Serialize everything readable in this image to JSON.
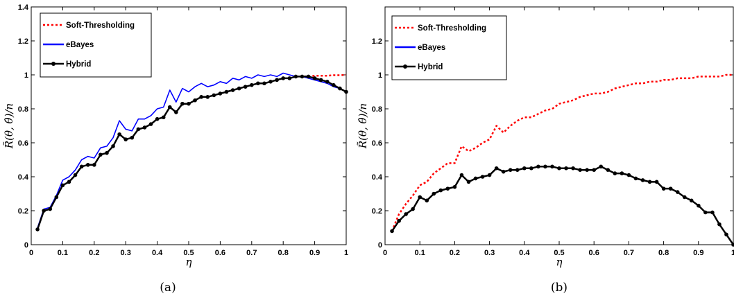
{
  "chart_data": [
    {
      "type": "line",
      "caption": "(a)",
      "xlabel": "η",
      "ylabel": "R̃(θ, θ̂)/n",
      "xlim": [
        0,
        1
      ],
      "ylim": [
        0,
        1.4
      ],
      "xticks": [
        "0",
        "0.1",
        "0.2",
        "0.3",
        "0.4",
        "0.5",
        "0.6",
        "0.7",
        "0.8",
        "0.9",
        "1"
      ],
      "yticks": [
        "0",
        "0.2",
        "0.4",
        "0.6",
        "0.8",
        "1",
        "1.2",
        "1.4"
      ],
      "legend_position": "top-left",
      "grid": false,
      "series": [
        {
          "name": "Soft-Thresholding",
          "color": "#ff0000",
          "style": "dotted",
          "x": [
            0.84,
            0.86,
            0.88,
            0.9,
            0.92,
            0.94,
            0.96,
            0.98,
            1.0
          ],
          "y": [
            0.99,
            0.99,
            0.99,
            0.995,
            0.995,
            0.995,
            0.998,
            0.998,
            1.0
          ]
        },
        {
          "name": "eBayes",
          "color": "#0000ff",
          "style": "solid",
          "x": [
            0.02,
            0.04,
            0.06,
            0.08,
            0.1,
            0.12,
            0.14,
            0.16,
            0.18,
            0.2,
            0.22,
            0.24,
            0.26,
            0.28,
            0.3,
            0.32,
            0.34,
            0.36,
            0.38,
            0.4,
            0.42,
            0.44,
            0.46,
            0.48,
            0.5,
            0.52,
            0.54,
            0.56,
            0.58,
            0.6,
            0.62,
            0.64,
            0.66,
            0.68,
            0.7,
            0.72,
            0.74,
            0.76,
            0.78,
            0.8,
            0.82,
            0.84,
            0.86,
            0.88,
            0.9,
            0.92,
            0.94,
            0.96,
            0.98,
            1.0
          ],
          "y": [
            0.1,
            0.21,
            0.22,
            0.29,
            0.38,
            0.4,
            0.44,
            0.5,
            0.52,
            0.51,
            0.57,
            0.58,
            0.63,
            0.73,
            0.68,
            0.67,
            0.74,
            0.74,
            0.76,
            0.8,
            0.81,
            0.91,
            0.84,
            0.92,
            0.9,
            0.93,
            0.95,
            0.93,
            0.94,
            0.96,
            0.95,
            0.98,
            0.97,
            0.99,
            0.98,
            1.0,
            0.99,
            1.0,
            0.99,
            1.01,
            1.0,
            0.99,
            0.99,
            0.98,
            0.97,
            0.96,
            0.95,
            0.93,
            0.92,
            0.9
          ]
        },
        {
          "name": "Hybrid",
          "color": "#000000",
          "style": "solid-marker",
          "x": [
            0.02,
            0.04,
            0.06,
            0.08,
            0.1,
            0.12,
            0.14,
            0.16,
            0.18,
            0.2,
            0.22,
            0.24,
            0.26,
            0.28,
            0.3,
            0.32,
            0.34,
            0.36,
            0.38,
            0.4,
            0.42,
            0.44,
            0.46,
            0.48,
            0.5,
            0.52,
            0.54,
            0.56,
            0.58,
            0.6,
            0.62,
            0.64,
            0.66,
            0.68,
            0.7,
            0.72,
            0.74,
            0.76,
            0.78,
            0.8,
            0.82,
            0.84,
            0.86,
            0.88,
            0.9,
            0.92,
            0.94,
            0.96,
            0.98,
            1.0
          ],
          "y": [
            0.09,
            0.2,
            0.21,
            0.28,
            0.35,
            0.37,
            0.41,
            0.46,
            0.47,
            0.47,
            0.53,
            0.54,
            0.58,
            0.65,
            0.62,
            0.63,
            0.68,
            0.69,
            0.71,
            0.74,
            0.75,
            0.81,
            0.78,
            0.83,
            0.83,
            0.85,
            0.87,
            0.87,
            0.88,
            0.89,
            0.9,
            0.91,
            0.92,
            0.93,
            0.94,
            0.95,
            0.95,
            0.96,
            0.97,
            0.98,
            0.98,
            0.99,
            0.99,
            0.99,
            0.98,
            0.97,
            0.96,
            0.94,
            0.92,
            0.9
          ]
        }
      ]
    },
    {
      "type": "line",
      "caption": "(b)",
      "xlabel": "η",
      "ylabel": "R̃(θ, θ̂)/n",
      "xlim": [
        0,
        1
      ],
      "ylim": [
        0,
        1.4
      ],
      "xticks": [
        "0",
        "0.1",
        "0.2",
        "0.3",
        "0.4",
        "0.5",
        "0.6",
        "0.7",
        "0.8",
        "0.9",
        "1"
      ],
      "yticks": [
        "0",
        "0.2",
        "0.4",
        "0.6",
        "0.8",
        "1",
        "1.2"
      ],
      "legend_position": "top-left",
      "grid": false,
      "series": [
        {
          "name": "Soft-Thresholding",
          "color": "#ff0000",
          "style": "dotted",
          "x": [
            0.02,
            0.04,
            0.06,
            0.08,
            0.1,
            0.12,
            0.14,
            0.16,
            0.18,
            0.2,
            0.22,
            0.24,
            0.26,
            0.28,
            0.3,
            0.32,
            0.34,
            0.36,
            0.38,
            0.4,
            0.42,
            0.44,
            0.46,
            0.48,
            0.5,
            0.52,
            0.54,
            0.56,
            0.58,
            0.6,
            0.62,
            0.64,
            0.66,
            0.68,
            0.7,
            0.72,
            0.74,
            0.76,
            0.78,
            0.8,
            0.82,
            0.84,
            0.86,
            0.88,
            0.9,
            0.92,
            0.94,
            0.96,
            0.98,
            1.0
          ],
          "y": [
            0.08,
            0.18,
            0.24,
            0.29,
            0.35,
            0.37,
            0.42,
            0.45,
            0.48,
            0.48,
            0.58,
            0.55,
            0.57,
            0.6,
            0.62,
            0.7,
            0.66,
            0.7,
            0.73,
            0.75,
            0.75,
            0.77,
            0.79,
            0.8,
            0.83,
            0.84,
            0.85,
            0.87,
            0.88,
            0.89,
            0.89,
            0.9,
            0.92,
            0.93,
            0.94,
            0.95,
            0.95,
            0.96,
            0.96,
            0.97,
            0.97,
            0.98,
            0.98,
            0.98,
            0.99,
            0.99,
            0.99,
            0.99,
            1.0,
            1.0
          ]
        },
        {
          "name": "eBayes",
          "color": "#0000ff",
          "style": "solid",
          "x": [],
          "y": []
        },
        {
          "name": "Hybrid",
          "color": "#000000",
          "style": "solid-marker",
          "x": [
            0.02,
            0.04,
            0.06,
            0.08,
            0.1,
            0.12,
            0.14,
            0.16,
            0.18,
            0.2,
            0.22,
            0.24,
            0.26,
            0.28,
            0.3,
            0.32,
            0.34,
            0.36,
            0.38,
            0.4,
            0.42,
            0.44,
            0.46,
            0.48,
            0.5,
            0.52,
            0.54,
            0.56,
            0.58,
            0.6,
            0.62,
            0.64,
            0.66,
            0.68,
            0.7,
            0.72,
            0.74,
            0.76,
            0.78,
            0.8,
            0.82,
            0.84,
            0.86,
            0.88,
            0.9,
            0.92,
            0.94,
            0.96,
            0.98,
            1.0
          ],
          "y": [
            0.08,
            0.14,
            0.18,
            0.21,
            0.28,
            0.26,
            0.3,
            0.32,
            0.33,
            0.34,
            0.41,
            0.37,
            0.39,
            0.4,
            0.41,
            0.45,
            0.43,
            0.44,
            0.44,
            0.45,
            0.45,
            0.46,
            0.46,
            0.46,
            0.45,
            0.45,
            0.45,
            0.44,
            0.44,
            0.44,
            0.46,
            0.44,
            0.42,
            0.42,
            0.41,
            0.39,
            0.38,
            0.37,
            0.37,
            0.33,
            0.33,
            0.31,
            0.28,
            0.26,
            0.23,
            0.19,
            0.19,
            0.12,
            0.06,
            0.0
          ]
        }
      ]
    }
  ]
}
